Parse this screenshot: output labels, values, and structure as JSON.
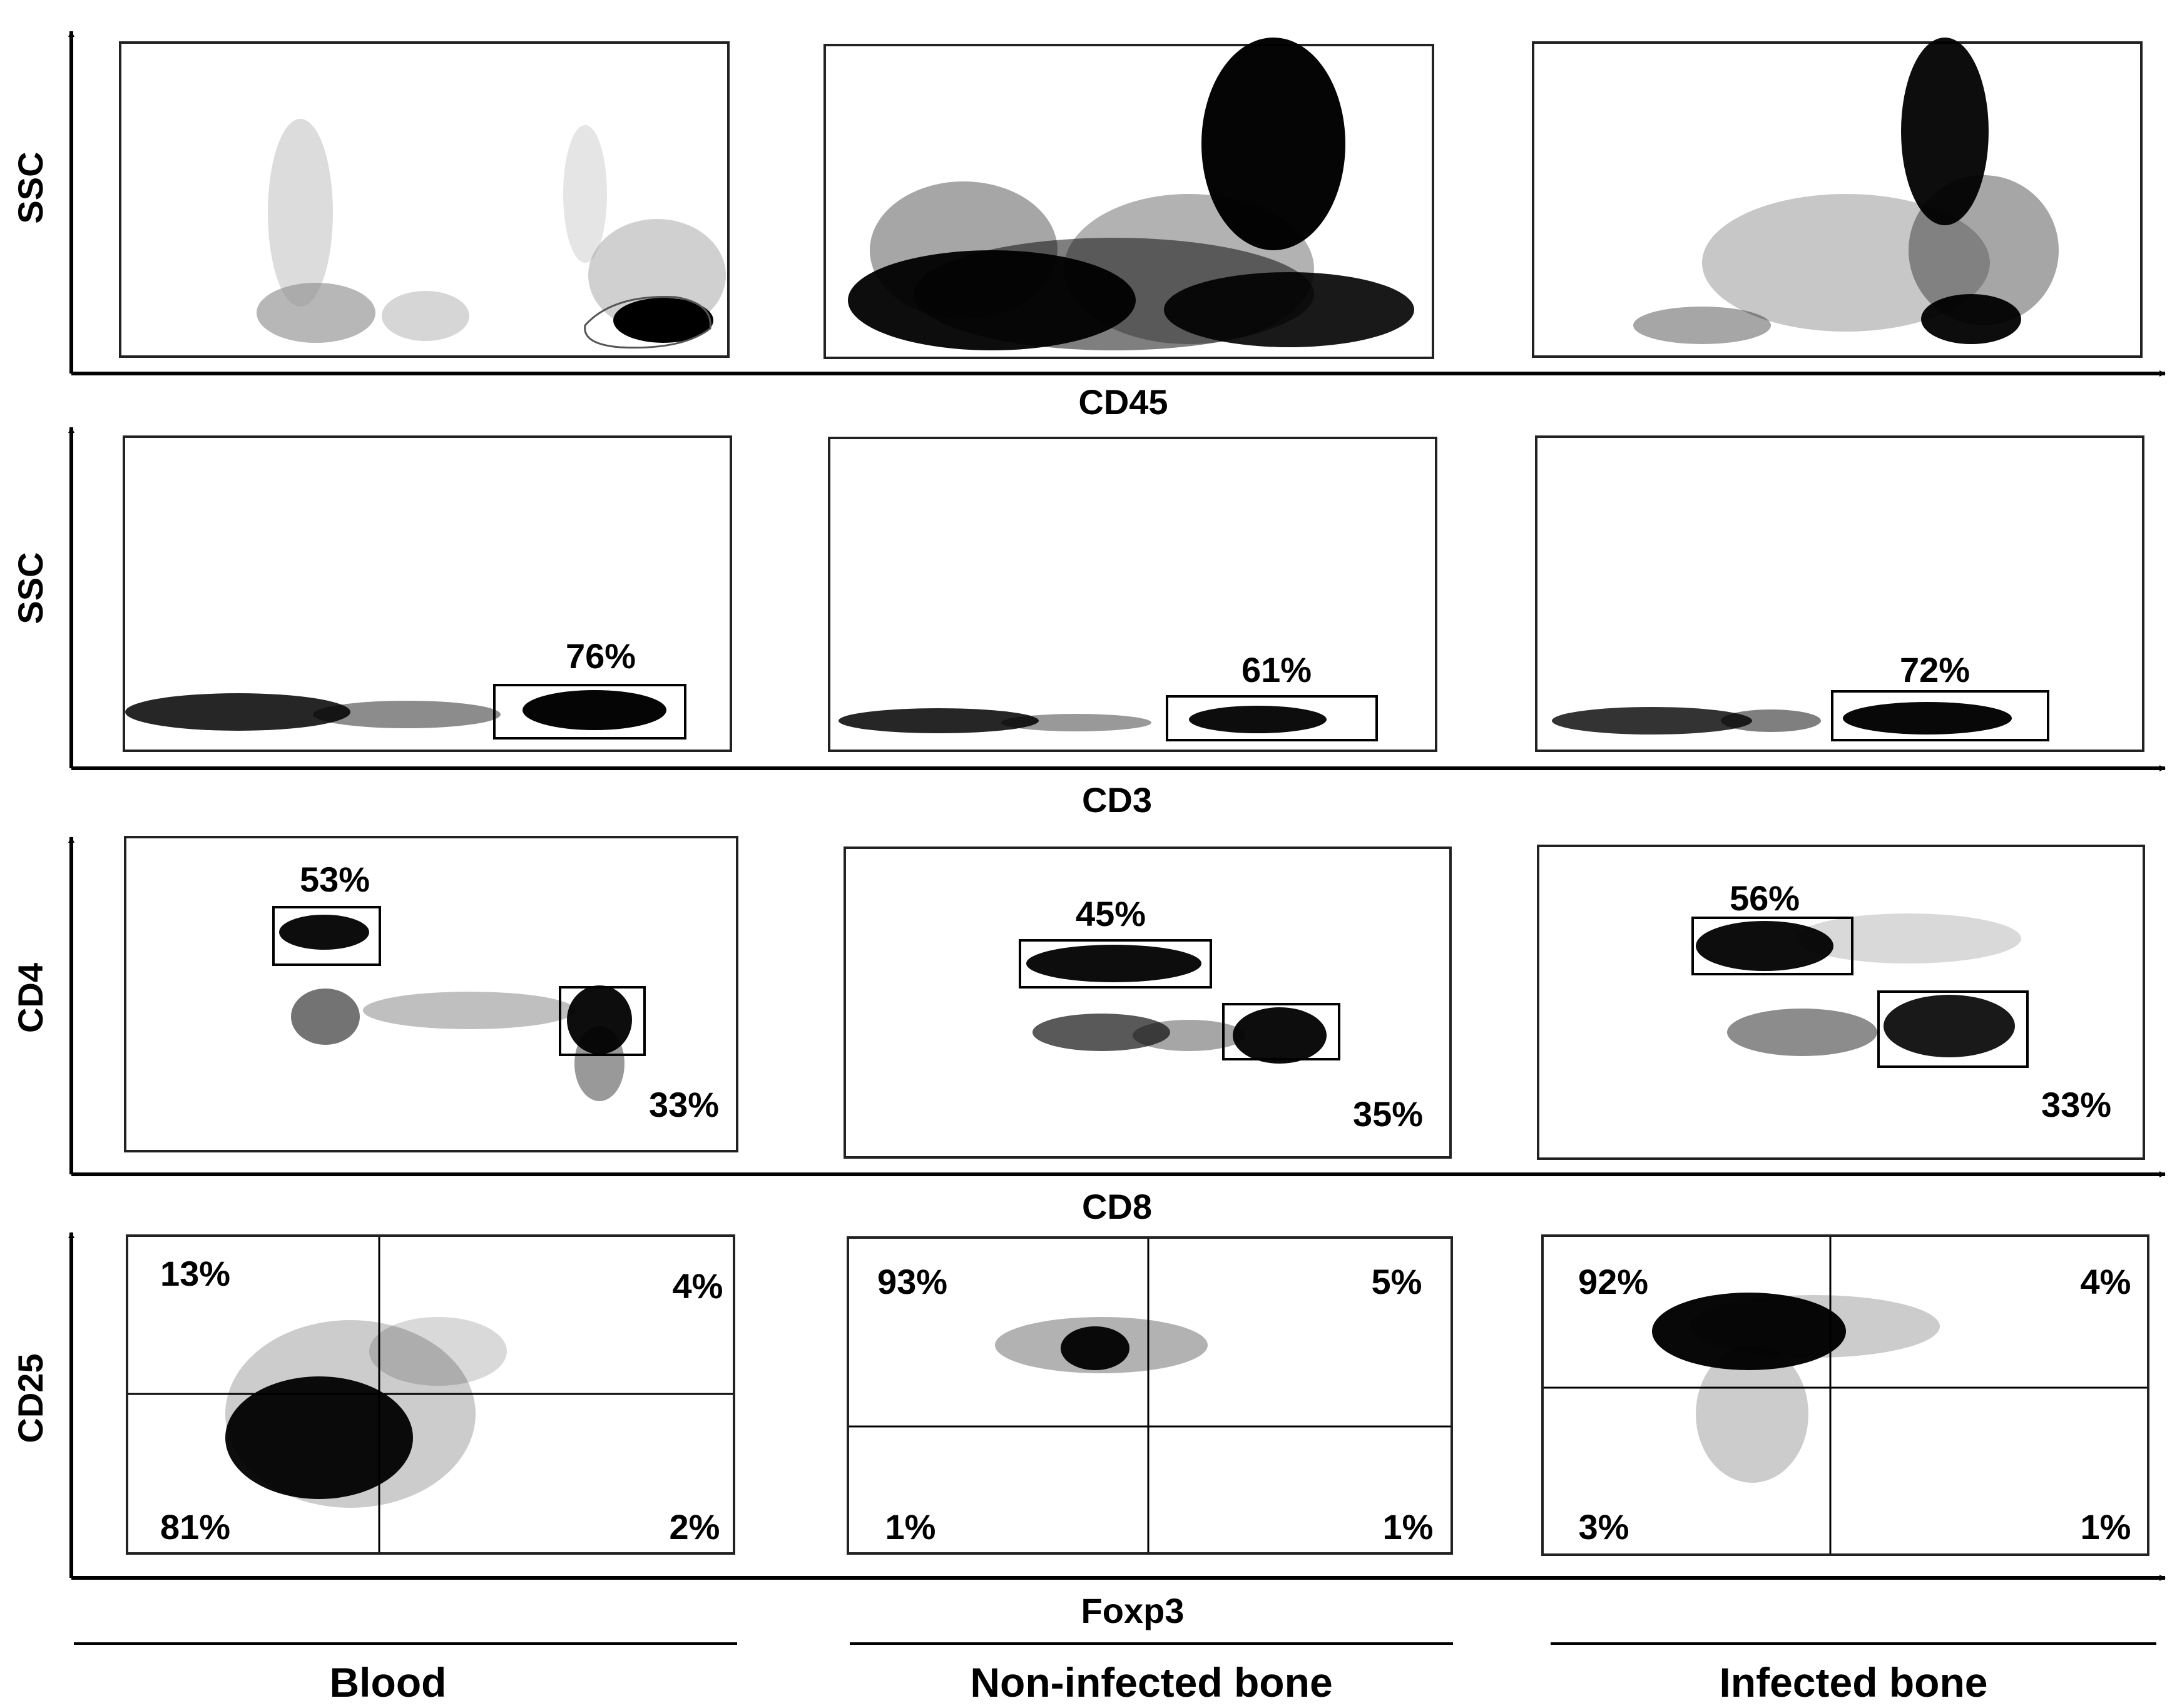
{
  "colors": {
    "ink": "#000000",
    "gray_dots": "#8c8c8c",
    "background": "#ffffff"
  },
  "row_axis_labels": [
    {
      "x_label": "CD45",
      "y_label": "SSC"
    },
    {
      "x_label": "CD3",
      "y_label": "SSC"
    },
    {
      "x_label": "CD8",
      "y_label": "CD4"
    },
    {
      "x_label": "Foxp3",
      "y_label": "CD25"
    }
  ],
  "columns": [
    "Blood",
    "Non-infected bone",
    "Infected bone"
  ],
  "chart_data": [
    {
      "type": "scatter",
      "row": 1,
      "xlabel": "CD45",
      "ylabel": "SSC",
      "panels": [
        {
          "column": "Blood",
          "gates": []
        },
        {
          "column": "Non-infected bone",
          "gates": []
        },
        {
          "column": "Infected bone",
          "gates": []
        }
      ]
    },
    {
      "type": "scatter",
      "row": 2,
      "xlabel": "CD3",
      "ylabel": "SSC",
      "panels": [
        {
          "column": "Blood",
          "gates": [
            {
              "label": "76%",
              "value": 76
            }
          ]
        },
        {
          "column": "Non-infected bone",
          "gates": [
            {
              "label": "61%",
              "value": 61
            }
          ]
        },
        {
          "column": "Infected bone",
          "gates": [
            {
              "label": "72%",
              "value": 72
            }
          ]
        }
      ]
    },
    {
      "type": "scatter",
      "row": 3,
      "xlabel": "CD8",
      "ylabel": "CD4",
      "panels": [
        {
          "column": "Blood",
          "gates": [
            {
              "population": "CD4",
              "label": "53%",
              "value": 53
            },
            {
              "population": "CD8",
              "label": "33%",
              "value": 33
            }
          ]
        },
        {
          "column": "Non-infected bone",
          "gates": [
            {
              "population": "CD4",
              "label": "45%",
              "value": 45
            },
            {
              "population": "CD8",
              "label": "35%",
              "value": 35
            }
          ]
        },
        {
          "column": "Infected bone",
          "gates": [
            {
              "population": "CD4",
              "label": "56%",
              "value": 56
            },
            {
              "population": "CD8",
              "label": "33%",
              "value": 33
            }
          ]
        }
      ]
    },
    {
      "type": "scatter",
      "row": 4,
      "xlabel": "Foxp3",
      "ylabel": "CD25",
      "panels": [
        {
          "column": "Blood",
          "quadrants": {
            "upper_left": "13%",
            "upper_right": "4%",
            "lower_left": "81%",
            "lower_right": "2%"
          }
        },
        {
          "column": "Non-infected bone",
          "quadrants": {
            "upper_left": "93%",
            "upper_right": "5%",
            "lower_left": "1%",
            "lower_right": "1%"
          }
        },
        {
          "column": "Infected bone",
          "quadrants": {
            "upper_left": "92%",
            "upper_right": "4%",
            "lower_left": "3%",
            "lower_right": "1%"
          }
        }
      ]
    }
  ]
}
